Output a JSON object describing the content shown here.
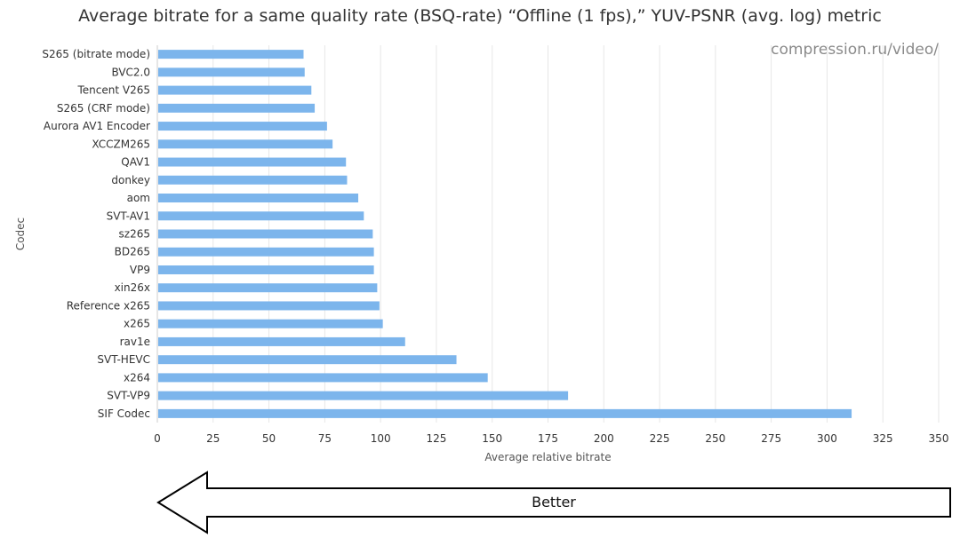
{
  "chart_data": {
    "type": "bar",
    "orientation": "horizontal",
    "title": "Average bitrate for a same quality rate (BSQ-rate) “Offline (1 fps),” YUV-PSNR (avg. log) metric",
    "xlabel": "Average relative bitrate",
    "ylabel": "Codec",
    "xlim": [
      0,
      350
    ],
    "xticks": [
      0,
      25,
      50,
      75,
      100,
      125,
      150,
      175,
      200,
      225,
      250,
      275,
      300,
      325,
      350
    ],
    "grid": true,
    "legend": "none",
    "categories": [
      "S265 (bitrate mode)",
      "BVC2.0",
      "Tencent V265",
      "S265 (CRF mode)",
      "Aurora AV1 Encoder",
      "XCCZM265",
      "QAV1",
      "donkey",
      "aom",
      "SVT-AV1",
      "sz265",
      "BD265",
      "VP9",
      "xin26x",
      "Reference x265",
      "x265",
      "rav1e",
      "SVT-HEVC",
      "x264",
      "SVT-VP9",
      "SIF Codec"
    ],
    "values": [
      65.5,
      66,
      69,
      70.5,
      76,
      78.5,
      84.5,
      85,
      90,
      92.5,
      96.5,
      97,
      97,
      98.5,
      99.5,
      101,
      111,
      134,
      148,
      184,
      311
    ],
    "bar_color": "#7cb5ec"
  },
  "watermark": "compression.ru/video/",
  "annotation": {
    "arrow_label": "Better",
    "direction": "left"
  },
  "colors": {
    "bar": "#7cb5ec",
    "grid": "#e6e6e6",
    "arrow_stroke": "#000000"
  }
}
